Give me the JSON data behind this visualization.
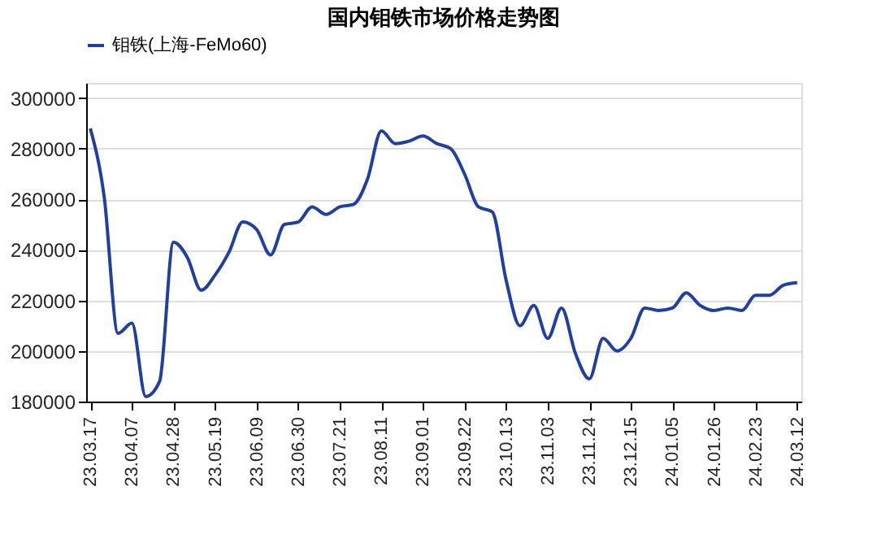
{
  "chart_data": {
    "type": "line",
    "title": "国内钼铁市场价格走势图",
    "categories": [
      "23.03.17",
      null,
      null,
      "23.04.07",
      null,
      null,
      "23.04.28",
      null,
      null,
      "23.05.19",
      null,
      null,
      "23.06.09",
      null,
      null,
      "23.06.30",
      null,
      null,
      "23.07.21",
      null,
      null,
      "23.08.11",
      null,
      null,
      "23.09.01",
      null,
      null,
      "23.09.22",
      null,
      null,
      "23.10.13",
      null,
      null,
      "23.11.03",
      null,
      null,
      "23.11.24",
      null,
      null,
      "23.12.15",
      null,
      null,
      "24.01.05",
      null,
      null,
      "24.01.26",
      null,
      null,
      "24.02.23",
      null,
      null,
      "24.03.12"
    ],
    "series": [
      {
        "name": "钼铁(上海-FeMo60)",
        "color": "#1f40a0",
        "values": [
          288000,
          261000,
          207000,
          211000,
          182000,
          188000,
          243000,
          237000,
          224000,
          230000,
          239000,
          251000,
          248000,
          238000,
          250000,
          251000,
          257000,
          254000,
          257000,
          258000,
          268000,
          287000,
          282000,
          283000,
          285000,
          282000,
          280000,
          270000,
          257000,
          255000,
          228000,
          210000,
          218000,
          205000,
          217000,
          199000,
          189000,
          205000,
          200000,
          205000,
          217000,
          216000,
          217000,
          223000,
          218000,
          216000,
          217000,
          216000,
          222000,
          222000,
          226000,
          227000
        ]
      }
    ],
    "ylim": [
      180000,
      306000
    ],
    "yticks": [
      180000,
      200000,
      220000,
      240000,
      260000,
      280000,
      300000
    ],
    "grid": "y",
    "legend": "top",
    "marker": "none",
    "line_style": "solid"
  }
}
